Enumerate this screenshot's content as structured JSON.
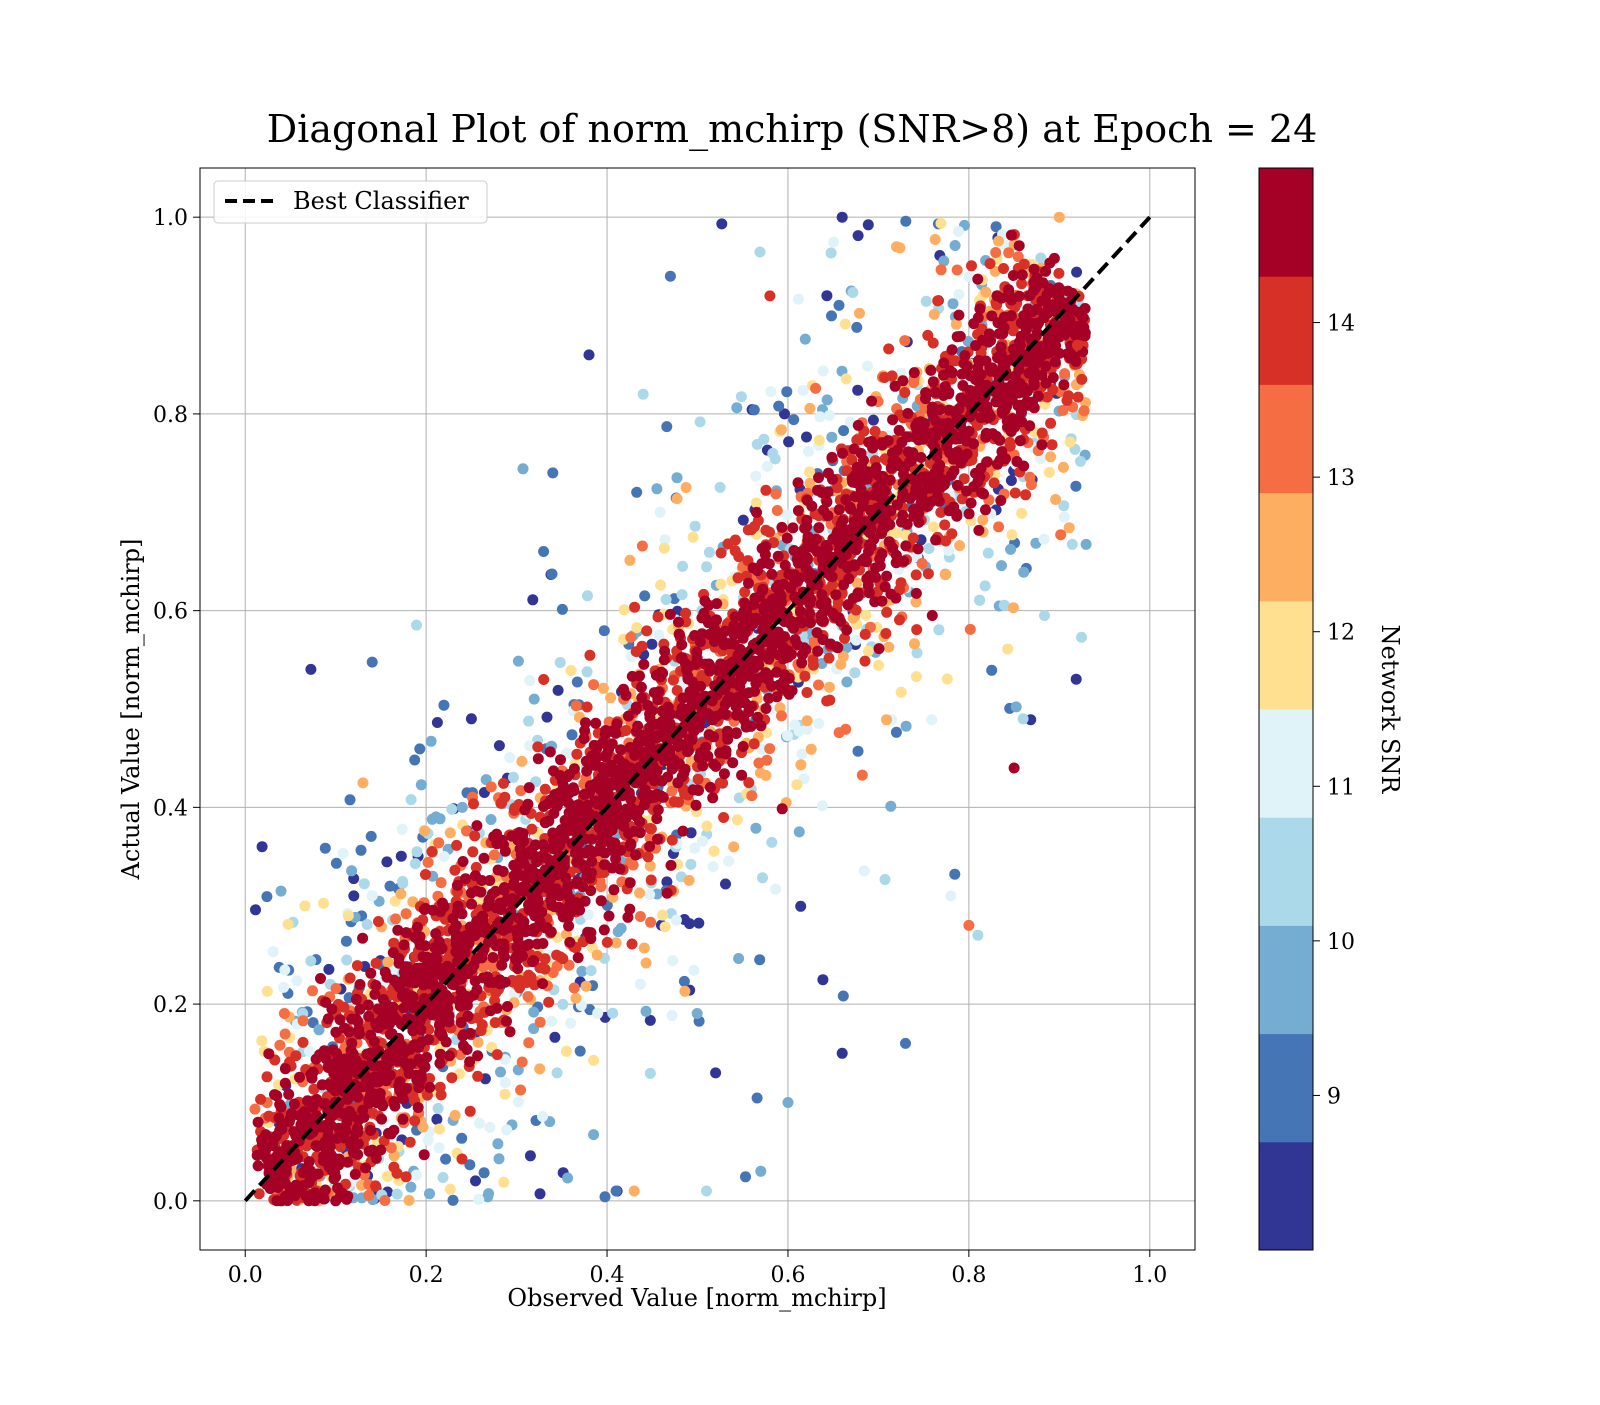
{
  "chart_data": {
    "type": "scatter",
    "title": "Diagonal Plot of norm_mchirp (SNR>8) at Epoch = 24",
    "xlabel": "Observed Value [norm_mchirp]",
    "ylabel": "Actual Value [norm_mchirp]",
    "xlim": [
      -0.05,
      1.05
    ],
    "ylim": [
      -0.05,
      1.05
    ],
    "xticks": [
      "0.0",
      "0.2",
      "0.4",
      "0.6",
      "0.8",
      "1.0"
    ],
    "yticks": [
      "0.0",
      "0.2",
      "0.4",
      "0.6",
      "0.8",
      "1.0"
    ],
    "grid": true,
    "legend": {
      "position": "top-left",
      "entries": [
        "Best Classifier"
      ]
    },
    "reference_line": {
      "name": "Best Classifier",
      "x": [
        0,
        1
      ],
      "y": [
        0,
        1
      ],
      "style": "dashed",
      "color": "#000000"
    },
    "colorbar": {
      "label": "Network SNR",
      "range": [
        8,
        15
      ],
      "ticks": [
        "9",
        "10",
        "11",
        "12",
        "13",
        "14"
      ],
      "colors": [
        "#313695",
        "#4575b4",
        "#74add1",
        "#abd9e9",
        "#e0f3f8",
        "#fee090",
        "#fdae61",
        "#f46d43",
        "#d73027",
        "#a50026"
      ]
    },
    "series_description": {
      "colors_by_snr_bin": [
        "#313695",
        "#4575b4",
        "#74add1",
        "#abd9e9",
        "#e0f3f8",
        "#fee090",
        "#fdae61",
        "#f46d43",
        "#d73027",
        "#a50026"
      ]
    },
    "sample_points": [
      {
        "x": 0.66,
        "y": 1.0,
        "snr": 8.3
      },
      {
        "x": 0.38,
        "y": 0.86,
        "snr": 8.3
      },
      {
        "x": 0.47,
        "y": 0.94,
        "snr": 9.0
      },
      {
        "x": 0.34,
        "y": 0.74,
        "snr": 9.2
      },
      {
        "x": 0.12,
        "y": 0.31,
        "snr": 8.3
      },
      {
        "x": 0.16,
        "y": 0.32,
        "snr": 9.1
      },
      {
        "x": 0.6,
        "y": 0.1,
        "snr": 9.5
      },
      {
        "x": 0.73,
        "y": 0.16,
        "snr": 9.2
      },
      {
        "x": 0.85,
        "y": 0.44,
        "snr": 14.6
      },
      {
        "x": 0.86,
        "y": 0.49,
        "snr": 10.5
      },
      {
        "x": 0.81,
        "y": 0.27,
        "snr": 10.3
      },
      {
        "x": 0.92,
        "y": 0.87,
        "snr": 14.2
      },
      {
        "x": 0.04,
        "y": 0.0,
        "snr": 14.5
      },
      {
        "x": 0.1,
        "y": 0.0,
        "snr": 14.5
      },
      {
        "x": 0.43,
        "y": 0.01,
        "snr": 12.5
      },
      {
        "x": 0.51,
        "y": 0.01,
        "snr": 10.2
      },
      {
        "x": 0.57,
        "y": 0.03,
        "snr": 9.6
      },
      {
        "x": 0.41,
        "y": 0.01,
        "snr": 9.3
      },
      {
        "x": 0.58,
        "y": 0.92,
        "snr": 13.9
      },
      {
        "x": 0.8,
        "y": 0.28,
        "snr": 13.6
      },
      {
        "x": 0.33,
        "y": 0.53,
        "snr": 13.7
      },
      {
        "x": 0.25,
        "y": 0.49,
        "snr": 8.6
      },
      {
        "x": 0.9,
        "y": 1.0,
        "snr": 12.5
      },
      {
        "x": 0.78,
        "y": 0.31,
        "snr": 11.0
      },
      {
        "x": 0.66,
        "y": 0.15,
        "snr": 8.7
      },
      {
        "x": 0.24,
        "y": 0.4,
        "snr": 9.6
      },
      {
        "x": 0.22,
        "y": 0.35,
        "snr": 11.2
      },
      {
        "x": 0.72,
        "y": 0.97,
        "snr": 12.3
      },
      {
        "x": 0.44,
        "y": 0.82,
        "snr": 10.6
      },
      {
        "x": 0.52,
        "y": 0.13,
        "snr": 8.4
      }
    ]
  }
}
